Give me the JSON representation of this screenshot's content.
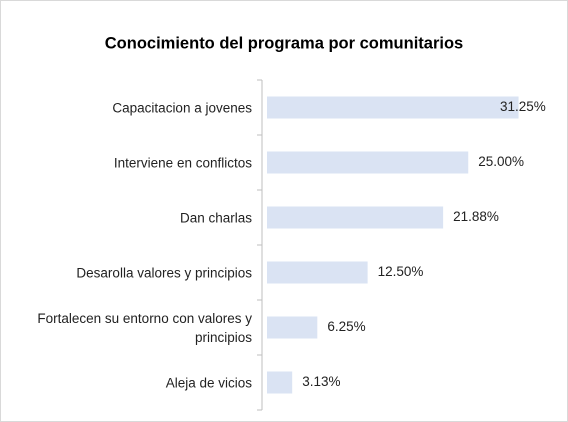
{
  "chart_data": {
    "type": "bar",
    "orientation": "horizontal",
    "title": "Conocimiento del programa por comunitarios",
    "categories": [
      "Capacitacion a jovenes",
      "Interviene en conflictos",
      "Dan charlas",
      "Desarolla valores y principios",
      "Fortalecen su entorno con valores y principios",
      "Aleja de vicios"
    ],
    "values": [
      31.25,
      25.0,
      21.88,
      12.5,
      6.25,
      3.13
    ],
    "value_labels": [
      "31.25%",
      "25.00%",
      "21.88%",
      "12.50%",
      "6.25%",
      "3.13%"
    ],
    "color": "#dae3f3"
  }
}
